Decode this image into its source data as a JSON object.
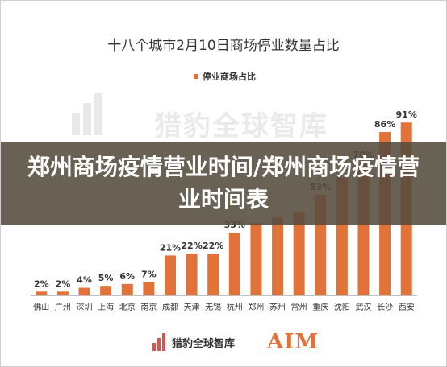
{
  "chart_data": {
    "type": "bar",
    "title": "十八个城市2月10日商场停业数量占比",
    "legend": [
      "停业商场占比"
    ],
    "legend_position": "top-center",
    "categories": [
      "佛山",
      "广州",
      "深圳",
      "上海",
      "北京",
      "南京",
      "成都",
      "天津",
      "无锡",
      "杭州",
      "郑州",
      "苏州",
      "常州",
      "重庆",
      "沈阳",
      "武汉",
      "长沙",
      "西安"
    ],
    "series": [
      {
        "name": "停业商场占比",
        "values": [
          2,
          2,
          4,
          5,
          6,
          7,
          21,
          22,
          22,
          33,
          38,
          41,
          44,
          53,
          62,
          70,
          86,
          91
        ],
        "labels": [
          "2%",
          "2%",
          "4%",
          "5%",
          "6%",
          "7%",
          "21%",
          "22%",
          "22%",
          "33%",
          "",
          "",
          "",
          "53%",
          "",
          "70%",
          "86%",
          "91%"
        ],
        "color": "#e1733a"
      }
    ],
    "ylim": [
      0,
      100
    ],
    "grid": false
  },
  "overlay": {
    "headline": "郑州商场疫情营业时间/郑州商场疫情营业时间表"
  },
  "watermark": {
    "text": "猎豹全球智库"
  },
  "footer": {
    "brand": "猎豹全球智库",
    "partner": "AIM"
  },
  "colors": {
    "bar": "#e1733a",
    "axis": "#bfbfbf",
    "banner": "#554b3e"
  }
}
